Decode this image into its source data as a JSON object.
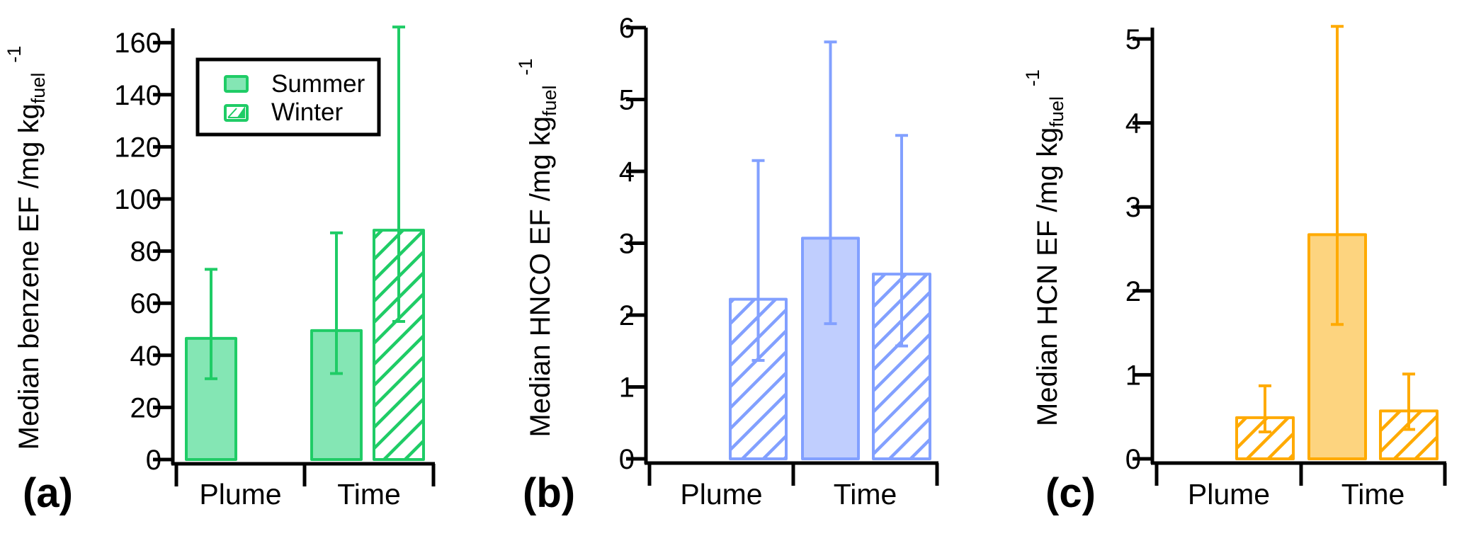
{
  "colors": {
    "benzene_stroke": "#1fcc66",
    "benzene_fill": "#84e6b4",
    "hnco_stroke": "#82a0ff",
    "hnco_fill": "#c0cefe",
    "hcn_stroke": "#ffaa00",
    "hcn_fill": "#fdd47f",
    "axis": "#000000"
  },
  "chart_data": [
    {
      "type": "bar",
      "panel_label": "(a)",
      "ylabel": {
        "main": "Median benzene EF /mg kg",
        "sub": "fuel",
        "sup": "-1"
      },
      "ylim": [
        0,
        166
      ],
      "yticks": [
        "0",
        "20",
        "40",
        "60",
        "80",
        "100",
        "120",
        "140",
        "160"
      ],
      "ytick_values": [
        0,
        20,
        40,
        60,
        80,
        100,
        120,
        140,
        160
      ],
      "categories": [
        "Plume",
        "Time"
      ],
      "series": [
        {
          "name": "Summer",
          "pattern": "solid",
          "values": [
            46.5,
            49.5
          ],
          "err_low": [
            31,
            33
          ],
          "err_high": [
            73,
            87
          ]
        },
        {
          "name": "Winter",
          "pattern": "hatched",
          "values": [
            null,
            88
          ],
          "err_low": [
            null,
            53
          ],
          "err_high": [
            null,
            166
          ]
        }
      ],
      "legend": {
        "entries": [
          "Summer",
          "Winter"
        ],
        "placement": "top-center"
      },
      "grid": false
    },
    {
      "type": "bar",
      "panel_label": "(b)",
      "ylabel": {
        "main": "Median HNCO EF /mg kg",
        "sub": "fuel",
        "sup": "-1"
      },
      "ylim": [
        0,
        6
      ],
      "yticks": [
        "0",
        "1",
        "2",
        "3",
        "4",
        "5",
        "6"
      ],
      "ytick_values": [
        0,
        1,
        2,
        3,
        4,
        5,
        6
      ],
      "categories": [
        "Plume",
        "Time"
      ],
      "series": [
        {
          "name": "Summer",
          "pattern": "solid",
          "values": [
            null,
            3.07
          ],
          "err_low": [
            null,
            1.88
          ],
          "err_high": [
            null,
            5.8
          ]
        },
        {
          "name": "Winter",
          "pattern": "hatched",
          "values": [
            2.22,
            2.57
          ],
          "err_low": [
            1.37,
            1.57
          ],
          "err_high": [
            4.15,
            4.5
          ]
        }
      ],
      "grid": false
    },
    {
      "type": "bar",
      "panel_label": "(c)",
      "ylabel": {
        "main": "Median HCN EF /mg kg",
        "sub": "fuel",
        "sup": "-1"
      },
      "ylim": [
        0,
        5.2
      ],
      "yticks": [
        "0",
        "1",
        "2",
        "3",
        "4",
        "5"
      ],
      "ytick_values": [
        0,
        1,
        2,
        3,
        4,
        5
      ],
      "categories": [
        "Plume",
        "Time"
      ],
      "series": [
        {
          "name": "Summer",
          "pattern": "solid",
          "values": [
            null,
            2.67
          ],
          "err_low": [
            null,
            1.6
          ],
          "err_high": [
            null,
            5.15
          ]
        },
        {
          "name": "Winter",
          "pattern": "hatched",
          "values": [
            0.49,
            0.57
          ],
          "err_low": [
            0.32,
            0.35
          ],
          "err_high": [
            0.87,
            1.01
          ]
        }
      ],
      "grid": false
    }
  ]
}
